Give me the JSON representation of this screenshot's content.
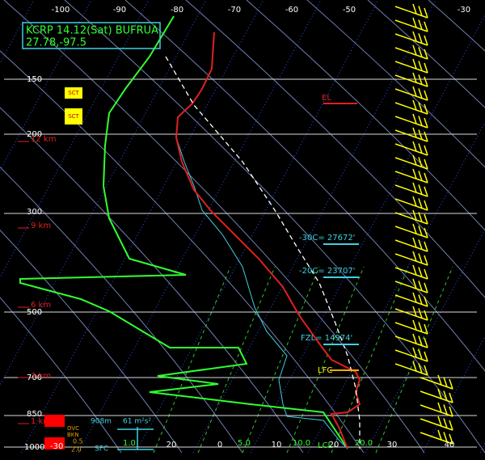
{
  "header": {
    "station": "KCRP 14.12(Sat) BUFRUA",
    "location": "27.78,-97.5"
  },
  "temperature_axis": [
    "-100",
    "-90",
    "-80",
    "-70",
    "-60",
    "-50",
    "-30"
  ],
  "pressure_levels": [
    "150",
    "200",
    "300",
    "500",
    "700",
    "850",
    "1000"
  ],
  "height_labels": [
    "12 km",
    "9 km",
    "6 km",
    "3 km",
    "1 km"
  ],
  "cloud_labels": [
    "SCT",
    "SCT"
  ],
  "levels": {
    "el": "EL",
    "minus30": "-30C= 27672'",
    "minus20": "-20C= 23707'",
    "fzl": "FZL= 14974'",
    "lfc": "LFC",
    "lcl": "LCL"
  },
  "bottom_axis": [
    "-30",
    "1.0",
    "20",
    "0",
    "5.0",
    "10",
    "10.0",
    "20",
    "20.0",
    "30",
    "40"
  ],
  "hodograph": {
    "height": "908m",
    "helicity": "61 m²s²",
    "surface": "SFC"
  },
  "low_clouds": [
    "OVC",
    "BKN",
    "0.5",
    "2.0"
  ]
}
